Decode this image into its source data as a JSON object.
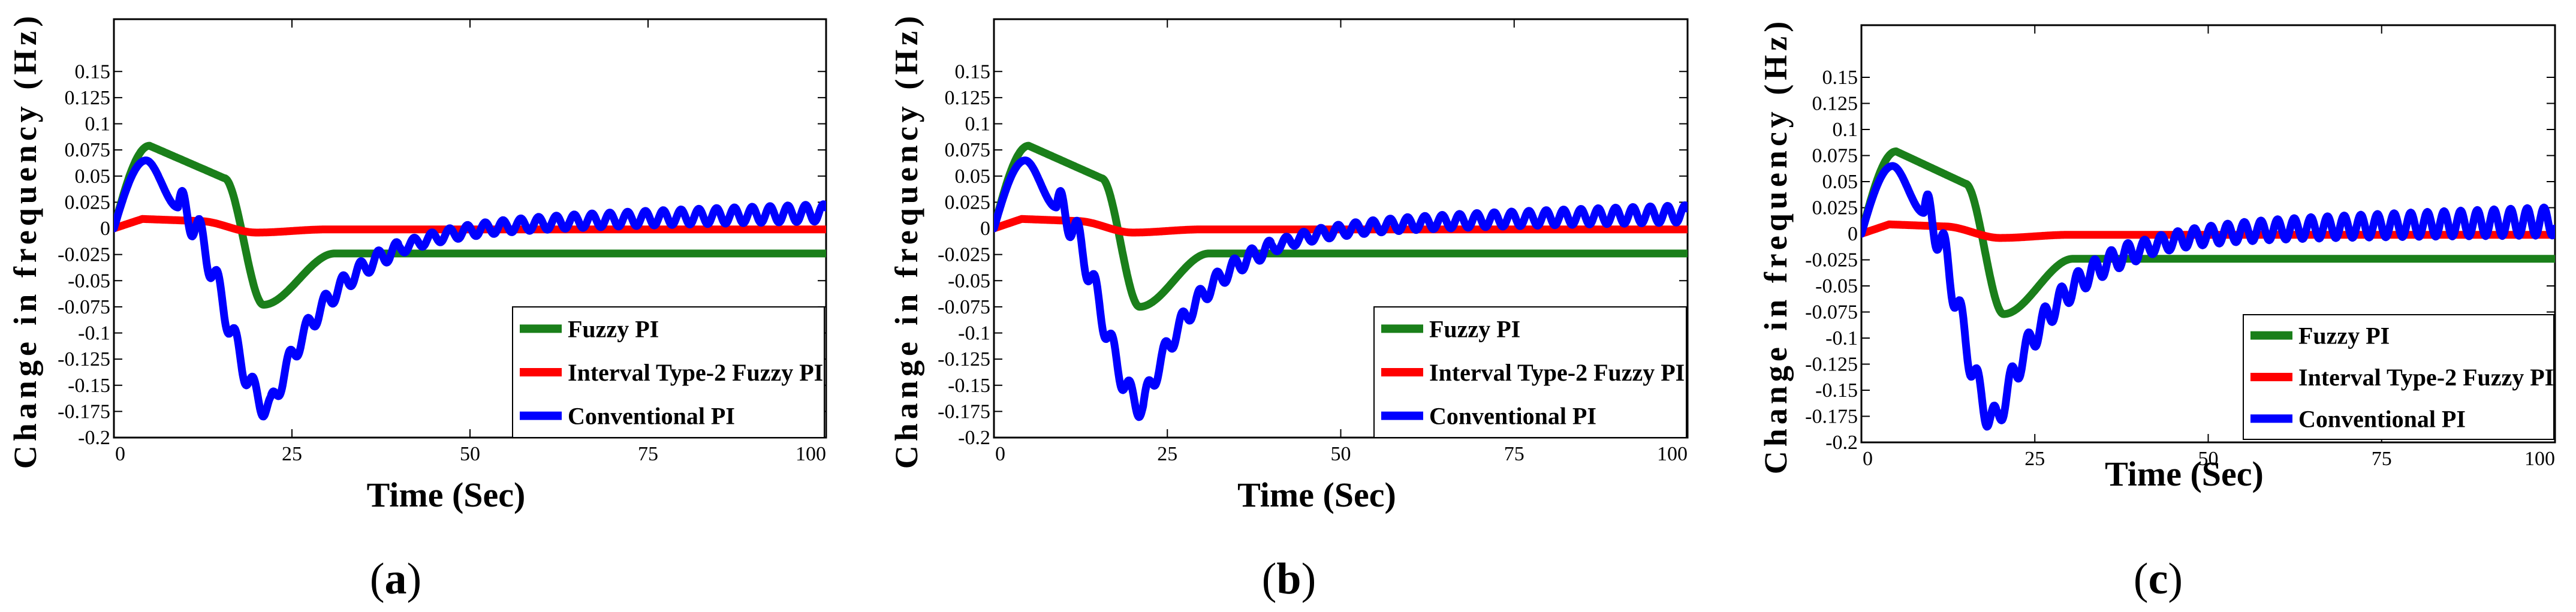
{
  "chart_data": [
    {
      "id": "a",
      "type": "line",
      "caption": {
        "open": "(",
        "letter": "a",
        "close": ")"
      },
      "xlabel": "Time (Sec)",
      "ylabel": "Change in frequency (Hz)",
      "xlim": [
        0,
        100
      ],
      "ylim": [
        -0.2,
        0.2
      ],
      "x_ticks": [
        0,
        25,
        50,
        75,
        100
      ],
      "x_tick_labels": [
        "0",
        "25",
        "50",
        "75",
        "100"
      ],
      "y_ticks": [
        0.15,
        0.125,
        0.1,
        0.075,
        0.05,
        0.025,
        0,
        -0.025,
        -0.05,
        -0.075,
        -0.1,
        -0.125,
        -0.15,
        -0.175,
        -0.2
      ],
      "y_tick_labels": [
        "0.15",
        "0.125",
        "0.1",
        "0.075",
        "0.05",
        "0.025",
        "0",
        "-0.025",
        "-0.05",
        "-0.075",
        "-0.1",
        "-0.125",
        "-0.15",
        "-0.175",
        "-0.2"
      ],
      "legend": {
        "location": "bottom-right",
        "entries": [
          "Fuzzy PI",
          "Interval Type-2 Fuzzy PI",
          "Conventional PI"
        ]
      },
      "series": [
        {
          "name": "Fuzzy PI",
          "color": "#1a7f1a",
          "kind": "fuzzy",
          "params": {
            "drop_start": 15.5,
            "min_x": 21,
            "min_val": -0.073
          }
        },
        {
          "name": "Interval Type-2 Fuzzy PI",
          "color": "#ff0000",
          "kind": "it2",
          "params": {}
        },
        {
          "name": "Conventional PI",
          "color": "#0000ff",
          "kind": "conv",
          "params": {
            "min_x": 22,
            "min_val": -0.172,
            "osc_amp": 0.0055,
            "osc_growth": 0.5,
            "osc_period": 2.5,
            "final_end": 0.015
          }
        }
      ]
    },
    {
      "id": "b",
      "type": "line",
      "caption": {
        "open": "(",
        "letter": "b",
        "close": ")"
      },
      "xlabel": "Time (Sec)",
      "ylabel": "Change in frequency (Hz)",
      "xlim": [
        0,
        100
      ],
      "ylim": [
        -0.2,
        0.2
      ],
      "x_ticks": [
        0,
        25,
        50,
        75,
        100
      ],
      "x_tick_labels": [
        "0",
        "25",
        "50",
        "75",
        "100"
      ],
      "y_ticks": [
        0.15,
        0.125,
        0.1,
        0.075,
        0.05,
        0.025,
        0,
        -0.025,
        -0.05,
        -0.075,
        -0.1,
        -0.125,
        -0.15,
        -0.175,
        -0.2
      ],
      "y_tick_labels": [
        "0.15",
        "0.125",
        "0.1",
        "0.075",
        "0.05",
        "0.025",
        "0",
        "-0.025",
        "-0.05",
        "-0.075",
        "-0.1",
        "-0.125",
        "-0.15",
        "-0.175",
        "-0.2"
      ],
      "legend": {
        "location": "bottom-right",
        "entries": [
          "Fuzzy PI",
          "Interval Type-2 Fuzzy PI",
          "Conventional PI"
        ]
      },
      "series": [
        {
          "name": "Fuzzy PI",
          "color": "#1a7f1a",
          "kind": "fuzzy",
          "params": {
            "drop_start": 15.5,
            "min_x": 21,
            "min_val": -0.075
          }
        },
        {
          "name": "Interval Type-2 Fuzzy PI",
          "color": "#ff0000",
          "kind": "it2",
          "params": {}
        },
        {
          "name": "Conventional PI",
          "color": "#0000ff",
          "kind": "conv",
          "params": {
            "min_x": 21.5,
            "min_val": -0.17,
            "osc_amp": 0.0055,
            "osc_growth": 0.5,
            "osc_period": 2.5,
            "final_end": 0.014
          }
        }
      ]
    },
    {
      "id": "c",
      "type": "line",
      "caption": {
        "open": "(",
        "letter": "c",
        "close": ")"
      },
      "xlabel": "Time (Sec)",
      "ylabel": "Change in frequency (Hz)",
      "xlim": [
        0,
        100
      ],
      "ylim": [
        -0.2,
        0.2
      ],
      "x_ticks": [
        0,
        25,
        50,
        75,
        100
      ],
      "x_tick_labels": [
        "0",
        "25",
        "50",
        "75",
        "100"
      ],
      "y_ticks": [
        0.15,
        0.125,
        0.1,
        0.075,
        0.05,
        0.025,
        0,
        -0.025,
        -0.05,
        -0.075,
        -0.1,
        -0.125,
        -0.15,
        -0.175,
        -0.2
      ],
      "y_tick_labels": [
        "0.15",
        "0.125",
        "0.1",
        "0.075",
        "0.05",
        "0.025",
        "0",
        "-0.025",
        "-0.05",
        "-0.075",
        "-0.1",
        "-0.125",
        "-0.15",
        "-0.175",
        "-0.2"
      ],
      "legend": {
        "location": "bottom-right",
        "entries": [
          "Fuzzy PI",
          "Interval Type-2 Fuzzy PI",
          "Conventional PI"
        ]
      },
      "series": [
        {
          "name": "Fuzzy PI",
          "color": "#1a7f1a",
          "kind": "fuzzy",
          "params": {
            "drop_start": 15,
            "min_x": 20.5,
            "min_val": -0.077
          }
        },
        {
          "name": "Interval Type-2 Fuzzy PI",
          "color": "#ff0000",
          "kind": "it2",
          "params": {}
        },
        {
          "name": "Conventional PI",
          "color": "#0000ff",
          "kind": "conv",
          "params": {
            "min_x": 19.5,
            "min_val": -0.18,
            "osc_amp": 0.008,
            "osc_growth": 0.7,
            "osc_period": 2.4,
            "final_end": 0.012
          }
        }
      ]
    }
  ]
}
